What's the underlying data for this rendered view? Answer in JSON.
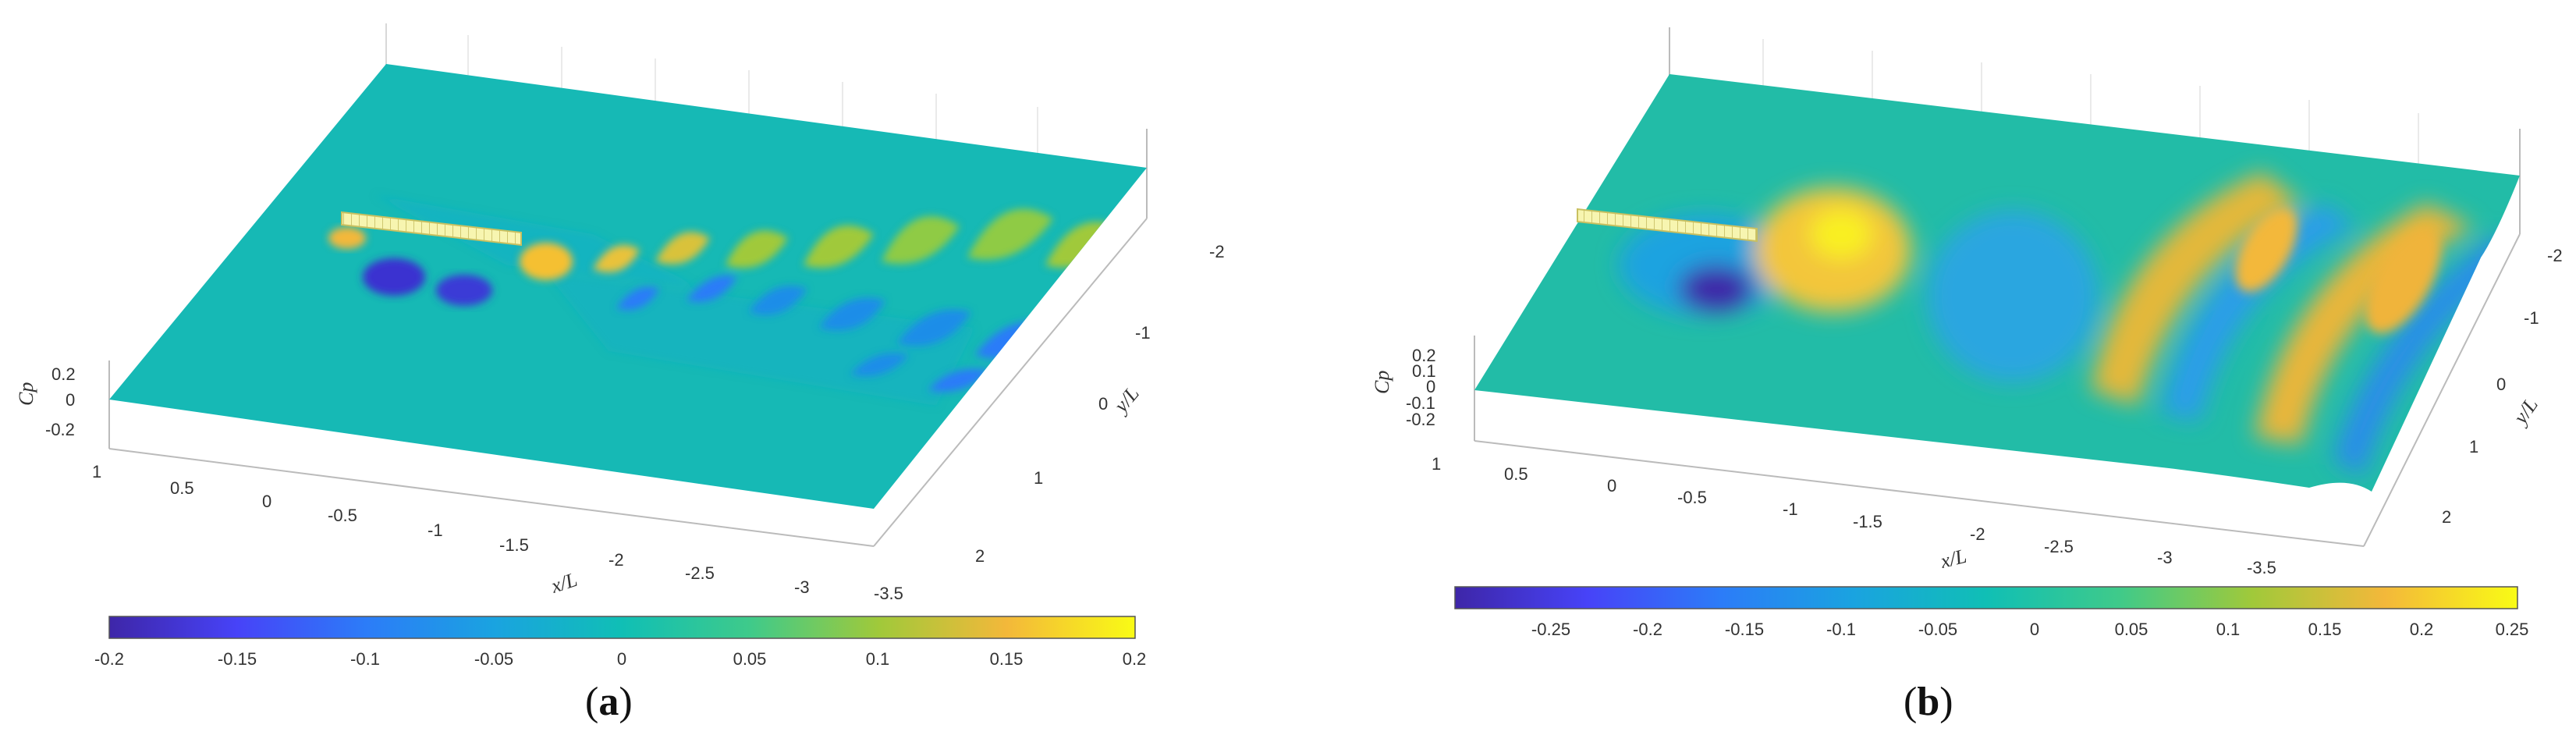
{
  "panels": [
    {
      "label_open": "(",
      "label_letter": "a",
      "label_close": ")",
      "z_label": "Cp",
      "z_ticks": [
        "0.2",
        "0",
        "-0.2"
      ],
      "x_label": "x/L",
      "x_ticks": [
        "1",
        "0.5",
        "0",
        "-0.5",
        "-1",
        "-1.5",
        "-2",
        "-2.5",
        "-3",
        "-3.5"
      ],
      "y_label": "y/L",
      "y_ticks": [
        "-2",
        "-1",
        "0",
        "1",
        "2"
      ],
      "colorbar_ticks": [
        "-0.2",
        "-0.15",
        "-0.1",
        "-0.05",
        "0",
        "0.05",
        "0.1",
        "0.15",
        "0.2"
      ],
      "colorbar_range": [
        -0.2,
        0.2
      ]
    },
    {
      "label_open": "(",
      "label_letter": "b",
      "label_close": ")",
      "z_label": "Cp",
      "z_ticks": [
        "0.2",
        "0.1",
        "0",
        "-0.1",
        "-0.2"
      ],
      "x_label": "x/L",
      "x_ticks": [
        "1",
        "0.5",
        "0",
        "-0.5",
        "-1",
        "-1.5",
        "-2",
        "-2.5",
        "-3",
        "-3.5"
      ],
      "y_label": "y/L",
      "y_ticks": [
        "-2",
        "-1",
        "0",
        "1",
        "2"
      ],
      "colorbar_ticks": [
        "-0.25",
        "-0.2",
        "-0.15",
        "-0.1",
        "-0.05",
        "0",
        "0.05",
        "0.1",
        "0.15",
        "0.2",
        "0.25"
      ],
      "colorbar_range": [
        -0.3,
        0.25
      ]
    }
  ],
  "colormap": [
    "#3e26a8",
    "#4743f8",
    "#2c7cf8",
    "#1aa3e0",
    "#10bfb5",
    "#3fca8a",
    "#a0c93a",
    "#f3b83a",
    "#f9fb15"
  ]
}
